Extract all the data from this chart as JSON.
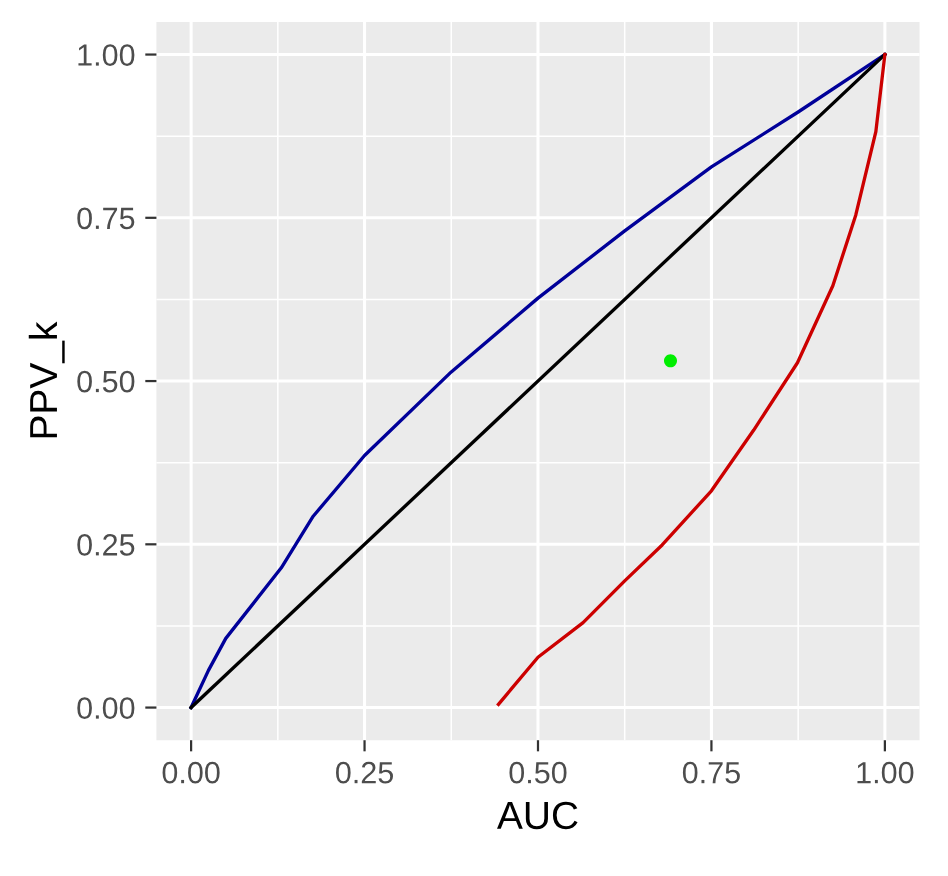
{
  "chart_data": {
    "type": "line",
    "xlabel": "AUC",
    "ylabel": "PPV_k",
    "xlim": [
      -0.05,
      1.05
    ],
    "ylim": [
      -0.05,
      1.05
    ],
    "xticks": [
      {
        "value": 0,
        "label": "0.00"
      },
      {
        "value": 0.25,
        "label": "0.25"
      },
      {
        "value": 0.5,
        "label": "0.50"
      },
      {
        "value": 0.75,
        "label": "0.75"
      },
      {
        "value": 1,
        "label": "1.00"
      }
    ],
    "yticks": [
      {
        "value": 0,
        "label": "0.00"
      },
      {
        "value": 0.25,
        "label": "0.25"
      },
      {
        "value": 0.5,
        "label": "0.50"
      },
      {
        "value": 0.75,
        "label": "0.75"
      },
      {
        "value": 1,
        "label": "1.00"
      }
    ],
    "grid": true,
    "legend": false,
    "series": [
      {
        "color": "#000099",
        "x": [
          0,
          0.025,
          0.05,
          0.13,
          0.176,
          0.25,
          0.375,
          0.5,
          0.625,
          0.75,
          0.875,
          1
        ],
        "values": [
          0,
          0.057,
          0.106,
          0.214,
          0.293,
          0.386,
          0.514,
          0.627,
          0.73,
          0.828,
          0.912,
          1
        ]
      },
      {
        "color": "#000000",
        "x": [
          0,
          1
        ],
        "values": [
          0,
          1
        ]
      },
      {
        "color": "#cc0000",
        "x": [
          0.443,
          0.5,
          0.565,
          0.625,
          0.679,
          0.75,
          0.811,
          0.874,
          0.925,
          0.958,
          0.987,
          1
        ],
        "values": [
          0.005,
          0.077,
          0.13,
          0.194,
          0.249,
          0.332,
          0.425,
          0.528,
          0.646,
          0.754,
          0.882,
          1
        ]
      },
      {
        "type": "scatter",
        "color": "#00ee00",
        "x": [
          0.691
        ],
        "values": [
          0.531
        ]
      }
    ]
  }
}
